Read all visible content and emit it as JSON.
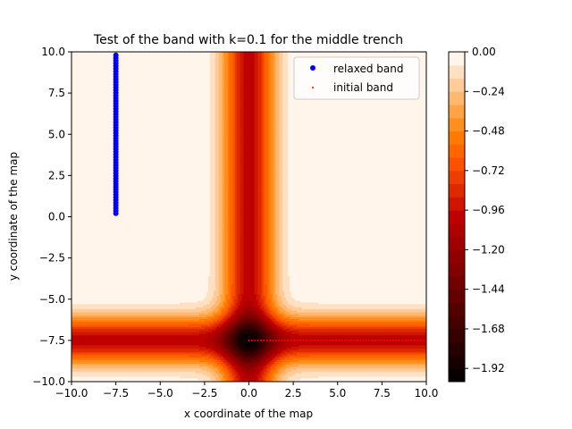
{
  "chart_data": {
    "type": "contourf+scatter",
    "title": "Test of the band with k=0.1 for the middle trench",
    "xlabel": "x coordinate of the map",
    "ylabel": "y coordinate of the map",
    "xlim": [
      -10,
      10
    ],
    "ylim": [
      -10,
      10
    ],
    "x_ticks": [
      "−10.0",
      "−7.5",
      "−5.0",
      "−2.5",
      "0.0",
      "2.5",
      "5.0",
      "7.5",
      "10.0"
    ],
    "y_ticks": [
      "−10.0",
      "−7.5",
      "−5.0",
      "−2.5",
      "0.0",
      "2.5",
      "5.0",
      "7.5",
      "10.0"
    ],
    "x_tick_values": [
      -10,
      -7.5,
      -5,
      -2.5,
      0,
      2.5,
      5,
      7.5,
      10
    ],
    "y_tick_values": [
      -10,
      -7.5,
      -5,
      -2.5,
      0,
      2.5,
      5,
      7.5,
      10
    ],
    "grid": false,
    "legend_position": "top-right",
    "colormap": "gist_heat",
    "contour_levels": [
      -2.0,
      -1.92,
      -1.84,
      -1.76,
      -1.68,
      -1.6,
      -1.52,
      -1.44,
      -1.36,
      -1.28,
      -1.2,
      -1.12,
      -1.04,
      -0.96,
      -0.88,
      -0.8,
      -0.72,
      -0.64,
      -0.56,
      -0.48,
      -0.4,
      -0.32,
      -0.24,
      -0.16,
      -0.08,
      0.0
    ],
    "colorbar_range": [
      -2.0,
      0.0
    ],
    "colorbar_ticks": [
      "0.00",
      "−0.24",
      "−0.48",
      "−0.72",
      "−0.96",
      "−1.20",
      "−1.44",
      "−1.68",
      "−1.92"
    ],
    "colorbar_tick_values": [
      0.0,
      -0.24,
      -0.48,
      -0.72,
      -0.96,
      -1.2,
      -1.44,
      -1.68,
      -1.92
    ],
    "field": {
      "vertical_trench_x": 0.0,
      "horizontal_trench_y": -7.5,
      "trench_half_width": 1.7
    },
    "series": [
      {
        "name": "relaxed band",
        "color": "#0000ff",
        "marker": "circle",
        "x_constant": -7.5,
        "y_range": [
          0.2,
          9.8
        ],
        "n_points": 60
      },
      {
        "name": "initial band",
        "color": "#ff0000",
        "marker": "small-dot",
        "y_constant": -7.5,
        "x_range": [
          0.0,
          10.0
        ],
        "n_points": 60
      }
    ]
  }
}
